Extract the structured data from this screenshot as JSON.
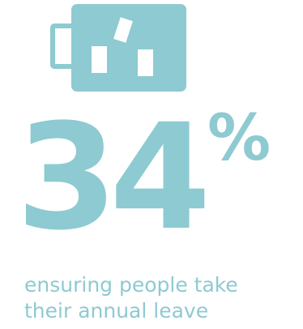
{
  "colors": {
    "accent": "#8ecad1",
    "background": "#ffffff"
  },
  "icon": {
    "name": "tea-mug-icon"
  },
  "stat": {
    "number": "34",
    "unit": "%"
  },
  "caption": "ensuring people take\ntheir annual leave"
}
